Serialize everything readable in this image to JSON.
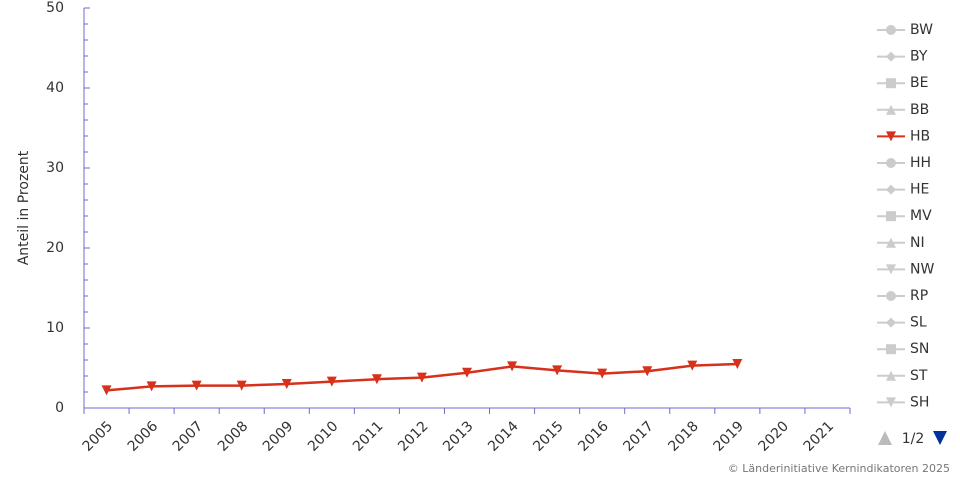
{
  "chart_data": {
    "type": "line",
    "y_axis_label": "Anteil in Prozent",
    "categories": [
      "2005",
      "2006",
      "2007",
      "2008",
      "2009",
      "2010",
      "2011",
      "2012",
      "2013",
      "2014",
      "2015",
      "2016",
      "2017",
      "2018",
      "2019",
      "2020",
      "2021"
    ],
    "series": [
      {
        "name": "BW",
        "marker": "circle",
        "visible": false
      },
      {
        "name": "BY",
        "marker": "diamond",
        "visible": false
      },
      {
        "name": "BE",
        "marker": "square",
        "visible": false
      },
      {
        "name": "BB",
        "marker": "triangle",
        "visible": false
      },
      {
        "name": "HB",
        "marker": "triangle-down",
        "visible": true,
        "color": "#d7301b",
        "values": [
          2.2,
          2.7,
          2.8,
          2.8,
          3.0,
          3.3,
          3.6,
          3.8,
          4.4,
          5.2,
          4.7,
          4.3,
          4.6,
          5.3,
          5.5,
          null,
          null
        ]
      },
      {
        "name": "HH",
        "marker": "circle",
        "visible": false
      },
      {
        "name": "HE",
        "marker": "diamond",
        "visible": false
      },
      {
        "name": "MV",
        "marker": "square",
        "visible": false
      },
      {
        "name": "NI",
        "marker": "triangle",
        "visible": false
      },
      {
        "name": "NW",
        "marker": "triangle-down",
        "visible": false
      },
      {
        "name": "RP",
        "marker": "circle",
        "visible": false
      },
      {
        "name": "SL",
        "marker": "diamond",
        "visible": false
      },
      {
        "name": "SN",
        "marker": "square",
        "visible": false
      },
      {
        "name": "ST",
        "marker": "triangle",
        "visible": false
      },
      {
        "name": "SH",
        "marker": "triangle-down",
        "visible": false
      }
    ],
    "hidden_color": "#cccccc",
    "axis_color": "#6b6bd1",
    "ylim": [
      0,
      50
    ],
    "yticks": [
      0,
      10,
      20,
      30,
      40,
      50
    ],
    "grid": false,
    "legend_position": "right",
    "legend_page": "1/2",
    "credit": "© Länderinitiative Kernindikatoren 2025"
  }
}
